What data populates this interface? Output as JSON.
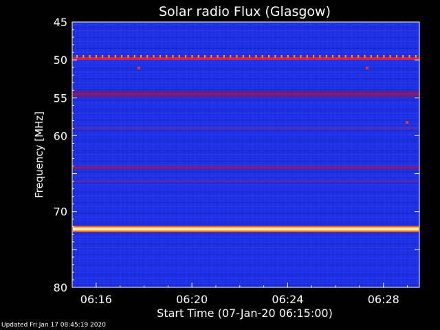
{
  "chart_data": {
    "type": "heatmap",
    "title": "Solar radio Flux (Glasgow)",
    "ylabel": "Frequency [MHz]",
    "xlabel": "Start Time (07-Jan-20 06:15:00)",
    "ylim": [
      45,
      80
    ],
    "y_ticks": [
      45,
      50,
      55,
      60,
      65,
      70,
      75,
      80
    ],
    "y_tick_labels": [
      "45",
      "50",
      "55",
      "60",
      "",
      "70",
      "",
      "80"
    ],
    "xlim": [
      "06:15:00",
      "06:29:30"
    ],
    "x_ticks": [
      "06:16",
      "06:20",
      "06:24",
      "06:28"
    ],
    "colormap": [
      "#0a0a60",
      "#1e2ee0",
      "#8a1a6a",
      "#ff2020",
      "#ffffff"
    ],
    "bands": [
      {
        "freq_mhz": 49.8,
        "intensity": "high"
      },
      {
        "freq_mhz": 54.5,
        "intensity": "medium"
      },
      {
        "freq_mhz": 59.0,
        "intensity": "low"
      },
      {
        "freq_mhz": 64.2,
        "intensity": "medium"
      },
      {
        "freq_mhz": 66.0,
        "intensity": "low"
      },
      {
        "freq_mhz": 72.3,
        "intensity": "saturated"
      }
    ]
  },
  "footer": {
    "updated": "Updated Fri Jan 17 08:45:19 2020"
  }
}
